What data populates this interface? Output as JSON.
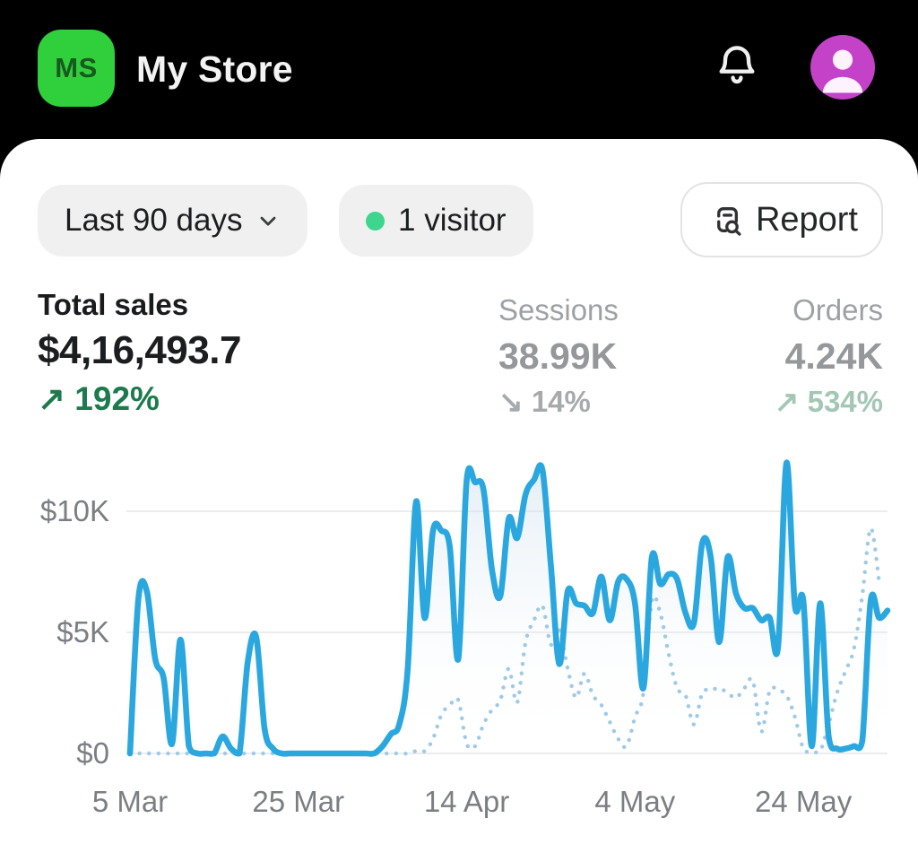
{
  "header": {
    "store_initials": "MS",
    "store_name": "My Store"
  },
  "toolbar": {
    "date_range_label": "Last 90 days",
    "visitors_label": "1 visitor",
    "report_label": "Report"
  },
  "metrics": {
    "total_sales": {
      "label": "Total sales",
      "value": "$4,16,493.7",
      "delta_arrow": "↗",
      "delta": "192%",
      "trend": "up",
      "selected": true
    },
    "sessions": {
      "label": "Sessions",
      "value": "38.99K",
      "delta_arrow": "↘",
      "delta": "14%",
      "trend": "down",
      "selected": false
    },
    "orders": {
      "label": "Orders",
      "value": "4.24K",
      "delta_arrow": "↗",
      "delta": "534%",
      "trend": "up",
      "selected": false
    }
  },
  "colors": {
    "header_bg": "#000000",
    "card_bg": "#FFFFFF",
    "logo_bg": "#2FD03C",
    "logo_text": "#17591F",
    "avatar_bg": "#C342C8",
    "live_dot": "#3ED58E",
    "delta_green": "#1C7A4C",
    "delta_muted_green": "#A4C7B5",
    "current_line": "#2BA7E0",
    "previous_line": "#9FCAE6",
    "area_fill_top": "#C3D9EA",
    "grid": "#E5E6E8",
    "axis_text": "#7B7E82"
  },
  "chart_data": {
    "type": "line",
    "title": "Total sales over the last 90 days vs previous period",
    "unit": "USD (thousands)",
    "xlabel": "",
    "ylabel": "",
    "grid": true,
    "legend": "none",
    "x_tick_labels": [
      "5 Mar",
      "25 Mar",
      "14 Apr",
      "4 May",
      "24 May"
    ],
    "x_tick_days": [
      0,
      20,
      40,
      60,
      80
    ],
    "y_tick_labels": [
      "$0",
      "$5K",
      "$10K"
    ],
    "y_ticks_k": [
      0,
      5,
      10
    ],
    "ylim_k": [
      0,
      12
    ],
    "days_span": 90,
    "series": [
      {
        "name": "current_period",
        "style": "solid",
        "values": [
          0,
          6.4,
          6.7,
          3.9,
          3.1,
          0.4,
          4.7,
          0.3,
          0,
          0,
          0,
          0.7,
          0.2,
          0,
          3.8,
          4.8,
          1.0,
          0.2,
          0,
          0,
          0,
          0,
          0,
          0,
          0,
          0,
          0,
          0,
          0,
          0,
          0.3,
          0.8,
          1.2,
          3.5,
          10.4,
          5.6,
          9.2,
          9.2,
          8.5,
          3.9,
          11.3,
          11.2,
          10.9,
          7.6,
          6.5,
          9.7,
          8.9,
          10.7,
          11.3,
          11.7,
          7.8,
          3.7,
          6.7,
          6.2,
          6.1,
          5.8,
          7.3,
          5.5,
          7.1,
          7.2,
          6.2,
          2.7,
          8.1,
          7.0,
          7.4,
          7.2,
          5.8,
          5.4,
          8.7,
          8.1,
          4.6,
          8.1,
          6.6,
          6.0,
          6.0,
          5.5,
          5.6,
          4.4,
          12.0,
          6.1,
          6.3,
          0.3,
          6.2,
          0.7,
          0.2,
          0.2,
          0.3,
          0.5,
          6.3,
          5.6,
          5.9
        ]
      },
      {
        "name": "previous_period",
        "style": "dotted",
        "values": [
          0,
          0,
          0,
          0,
          0,
          0,
          0,
          0,
          0,
          0,
          0,
          0,
          0,
          0,
          0,
          0,
          0,
          0,
          0,
          0,
          0,
          0,
          0,
          0,
          0,
          0,
          0,
          0,
          0,
          0,
          0,
          0,
          0,
          0,
          0.1,
          0.1,
          0.6,
          1.6,
          2.0,
          2.2,
          0.4,
          0.3,
          1.2,
          1.8,
          2.2,
          3.5,
          2.1,
          4.6,
          5.5,
          6.1,
          4.5,
          5.1,
          3.5,
          2.3,
          3.3,
          2.4,
          2.0,
          1.3,
          0.6,
          0.3,
          1.5,
          2.5,
          6.3,
          5.8,
          4.1,
          2.7,
          2.4,
          1.2,
          2.5,
          2.6,
          2.7,
          2.5,
          2.3,
          2.7,
          3.0,
          0.9,
          2.6,
          2.6,
          2.4,
          1.5,
          0.2,
          0.1,
          0.1,
          1.2,
          2.5,
          3.4,
          4.3,
          6.5,
          9.3,
          7.1,
          null
        ]
      }
    ]
  }
}
